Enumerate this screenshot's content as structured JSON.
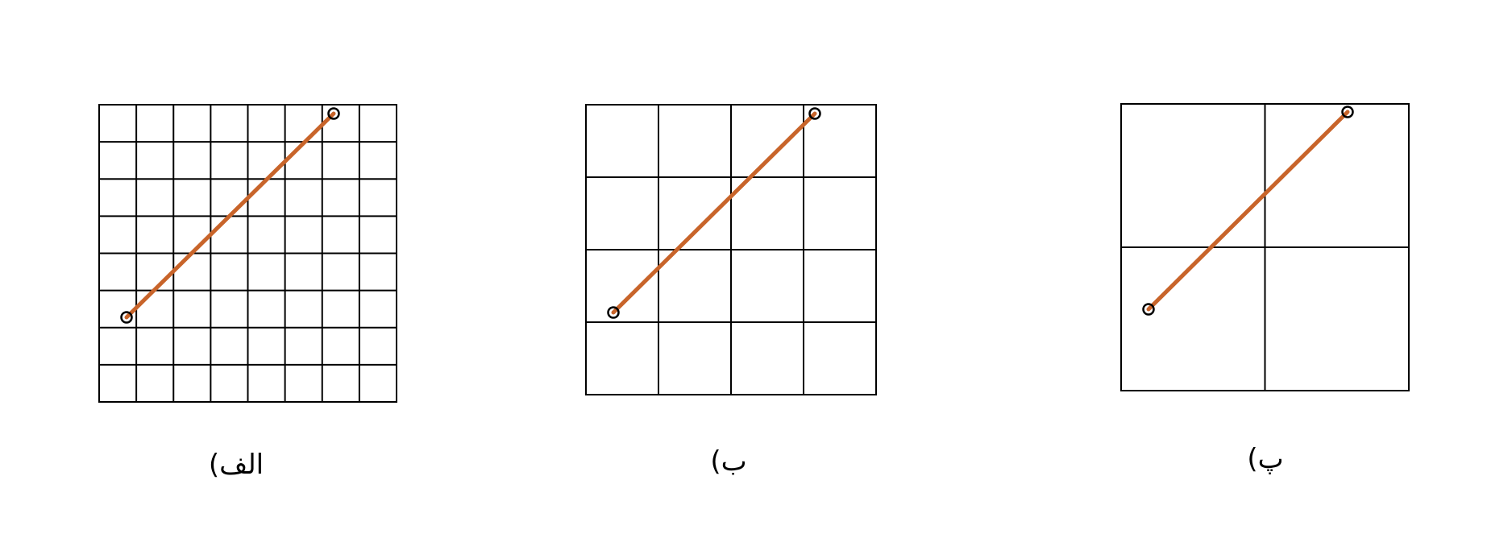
{
  "panels": [
    {
      "label": "الف)",
      "grid_divisions": 8,
      "grid_color": "#000000",
      "segment_color": "#c8642a",
      "endpoint_color": "#000000"
    },
    {
      "label": "ب)",
      "grid_divisions": 4,
      "grid_color": "#000000",
      "segment_color": "#c8642a",
      "endpoint_color": "#000000"
    },
    {
      "label": "پ)",
      "grid_divisions": 2,
      "grid_color": "#000000",
      "segment_color": "#c8642a",
      "endpoint_color": "#000000"
    }
  ]
}
